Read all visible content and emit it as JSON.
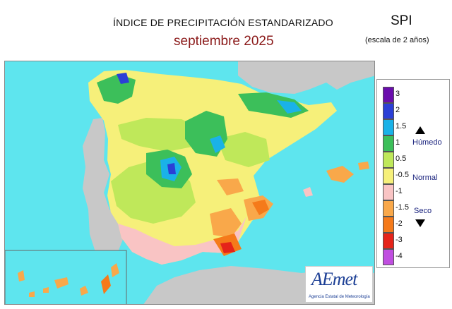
{
  "header": {
    "title": "ÍNDICE DE PRECIPITACIÓN ESTANDARIZADO",
    "subtitle": "septiembre  2025",
    "index_name": "SPI",
    "scale_note": "(escala de 2 años)"
  },
  "legend": {
    "categories": {
      "wet": "Húmedo",
      "normal": "Normal",
      "dry": "Seco"
    },
    "ticks": [
      "3",
      "2",
      "1.5",
      "1",
      "0.5",
      "-0.5",
      "-1",
      "-1.5",
      "-2",
      "-3",
      "-4"
    ],
    "colors": [
      "#6a0dad",
      "#2b3fd6",
      "#1ab2e8",
      "#3cbf5a",
      "#bfe85a",
      "#f6f07a",
      "#f9c4c4",
      "#f9a84a",
      "#f57a1a",
      "#e5231a",
      "#c04ee0"
    ]
  },
  "logo": {
    "word": "AEmet",
    "sub": "Agencia Estatal de Meteorología"
  },
  "colors": {
    "sea": "#5ee5ee",
    "land_other": "#c8c8c8",
    "title_red": "#8b1a1a",
    "legend_text": "#1a237e"
  }
}
